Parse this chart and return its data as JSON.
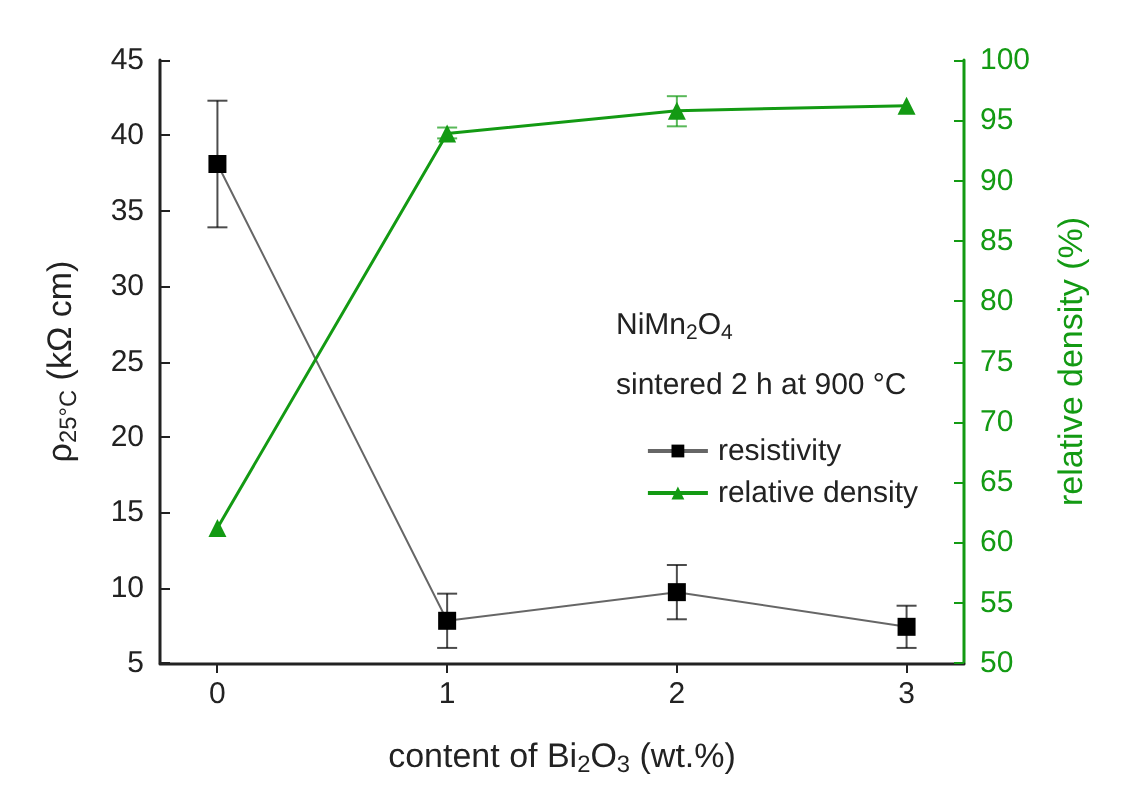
{
  "chart_data": {
    "type": "line",
    "xlabel": "content of Bi$_{2}$O$_{3}$ (wt.%)",
    "ylabel": "ρ$_{25°C}$ (kΩ cm)",
    "y2label": "relative density (%)",
    "legend_title": "NiMn$_{2}$O$_{4}$",
    "annotations": [
      "sintered 2 h at 900 °C"
    ],
    "x": [
      0,
      1,
      2,
      3
    ],
    "xlim": [
      -0.25,
      3.25
    ],
    "xticks": [
      0,
      1,
      2,
      3
    ],
    "ylim": [
      5,
      45
    ],
    "yticks": [
      5,
      10,
      15,
      20,
      25,
      30,
      35,
      40,
      45
    ],
    "y2lim": [
      50,
      100
    ],
    "y2ticks": [
      50,
      55,
      60,
      65,
      70,
      75,
      80,
      85,
      90,
      95,
      100
    ],
    "series": [
      {
        "name": "resistivity",
        "color": "#000000",
        "marker": "square",
        "values": [
          38.1,
          7.8,
          9.7,
          7.4
        ],
        "errors": [
          [
            33.9,
            42.3
          ],
          [
            6.0,
            9.6
          ],
          [
            7.9,
            11.5
          ],
          [
            6.0,
            8.8
          ]
        ]
      },
      {
        "name": "relative density",
        "color": "#139a13",
        "marker": "triangle",
        "axis": "y2",
        "values": [
          61.2,
          93.9,
          95.8,
          96.2
        ],
        "errors": [
          null,
          [
            93.5,
            94.4
          ],
          [
            94.5,
            97.0
          ],
          null
        ]
      }
    ],
    "grid": false,
    "legend": "right",
    "line_style": "solid"
  }
}
